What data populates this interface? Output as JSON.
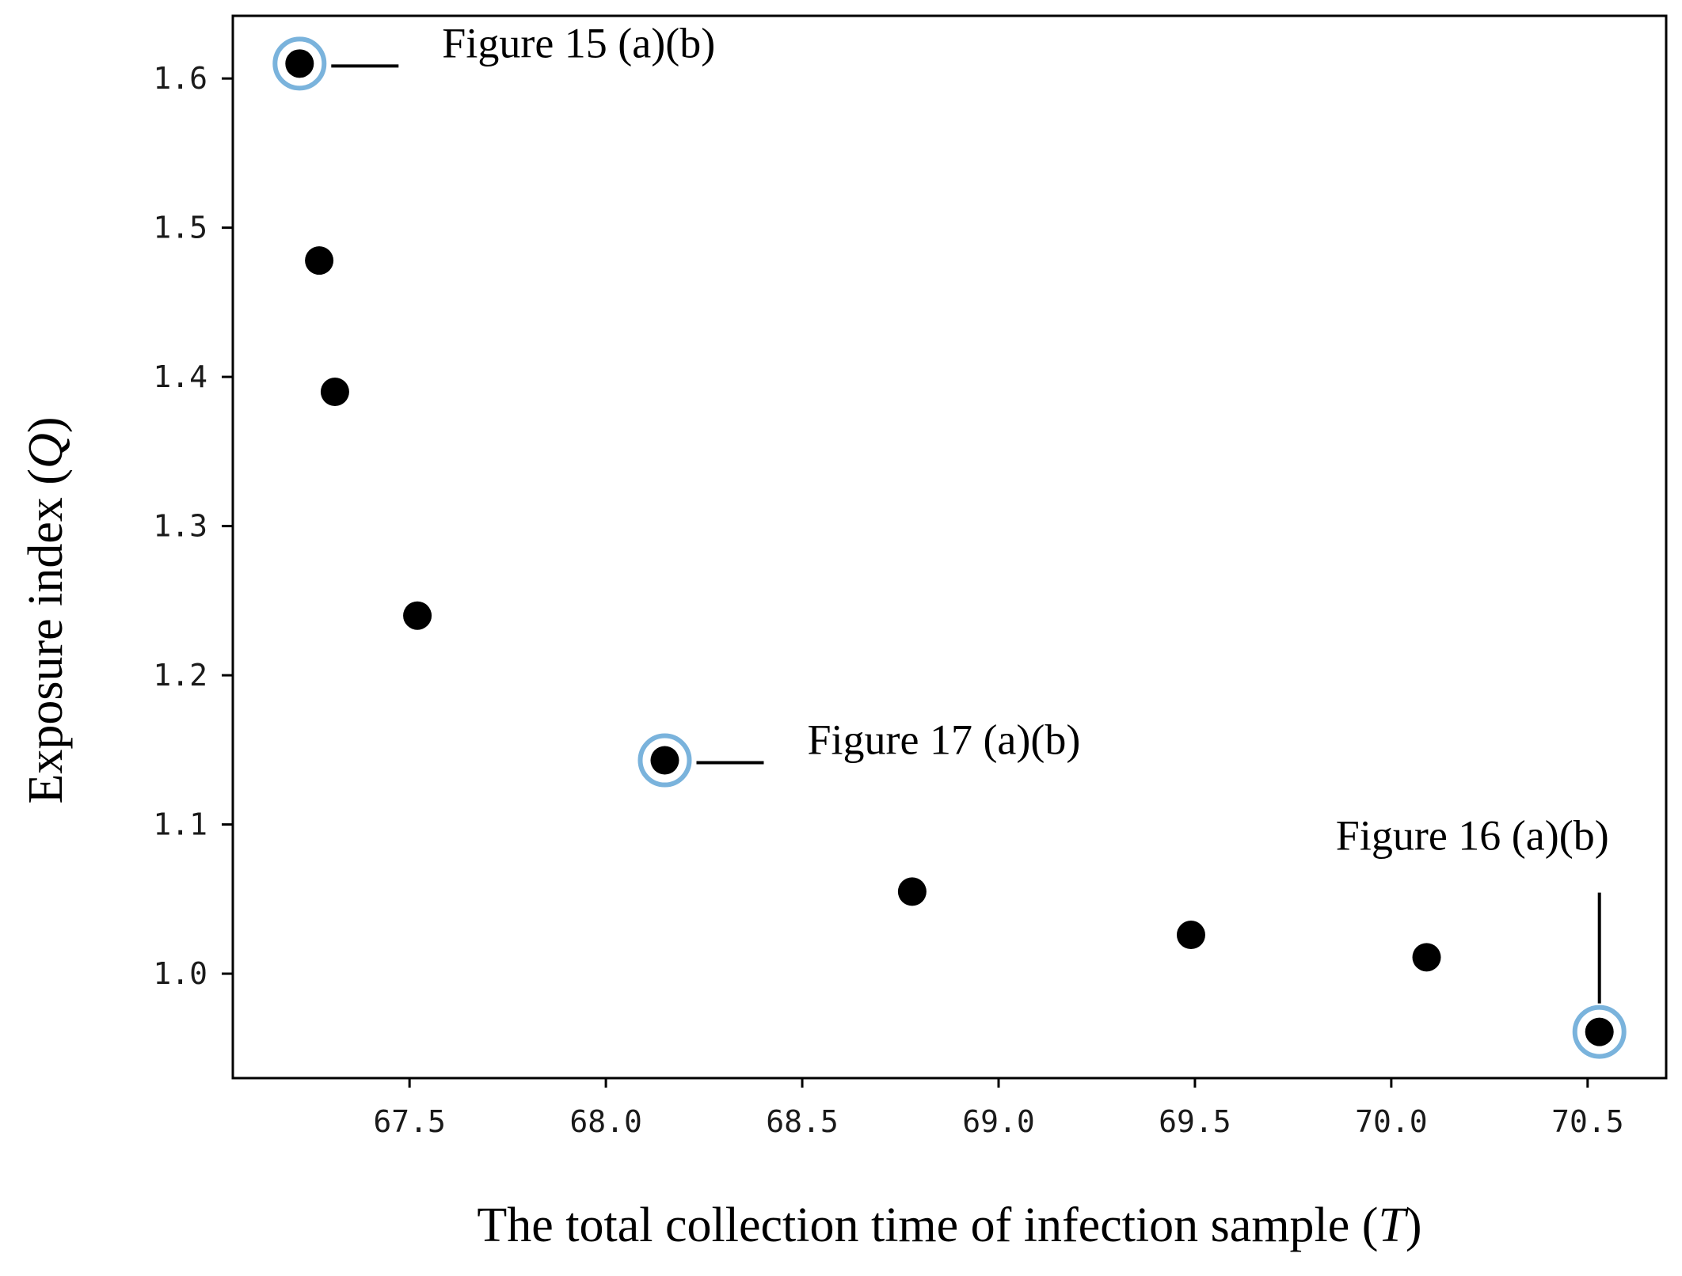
{
  "chart_data": {
    "type": "scatter",
    "title": "",
    "xlabel_prefix": "The total collection time of infection sample (",
    "xlabel_var": "T",
    "xlabel_suffix": ")",
    "ylabel_prefix": "Exposure index (",
    "ylabel_var": "Q",
    "ylabel_suffix": ")",
    "xlim": [
      67.05,
      70.7
    ],
    "ylim": [
      0.93,
      1.642
    ],
    "x_ticks": [
      67.5,
      68.0,
      68.5,
      69.0,
      69.5,
      70.0,
      70.5
    ],
    "x_tick_labels": [
      "67.5",
      "68.0",
      "68.5",
      "69.0",
      "69.5",
      "70.0",
      "70.5"
    ],
    "y_ticks": [
      1.0,
      1.1,
      1.2,
      1.3,
      1.4,
      1.5,
      1.6
    ],
    "y_tick_labels": [
      "1.0",
      "1.1",
      "1.2",
      "1.3",
      "1.4",
      "1.5",
      "1.6"
    ],
    "grid": false,
    "series": [
      {
        "name": "points",
        "x": [
          67.22,
          67.27,
          67.31,
          67.52,
          68.15,
          68.78,
          69.49,
          70.09,
          70.53
        ],
        "y": [
          1.61,
          1.478,
          1.39,
          1.24,
          1.143,
          1.055,
          1.026,
          1.011,
          0.961
        ]
      }
    ],
    "highlight_color": "#7ab3dc",
    "point_color": "#000000",
    "annotations": [
      {
        "text": "Figure 15 (a)(b)",
        "point_index": 0,
        "style": "right"
      },
      {
        "text": "Figure 17 (a)(b)",
        "point_index": 4,
        "style": "right"
      },
      {
        "text": "Figure 16 (a)(b)",
        "point_index": 8,
        "style": "above"
      }
    ]
  }
}
